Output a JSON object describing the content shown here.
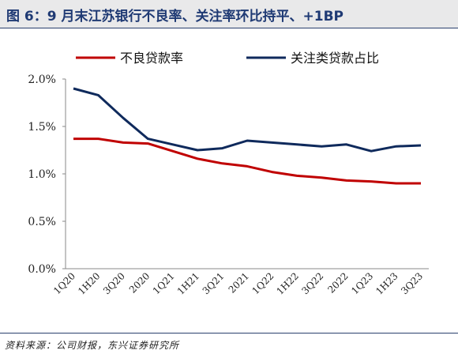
{
  "figure_title": "图 6：9 月末江苏银行不良率、关注率环比持平、+1BP",
  "source": "资料来源：公司财报，东兴证券研究所",
  "chart_data": {
    "type": "line",
    "categories": [
      "1Q20",
      "1H20",
      "3Q20",
      "2020",
      "1Q21",
      "1H21",
      "3Q21",
      "2021",
      "1Q22",
      "1H22",
      "3Q22",
      "2022",
      "1Q23",
      "1H23",
      "3Q23"
    ],
    "series": [
      {
        "name": "不良贷款率",
        "color": "#c00000",
        "values": [
          1.37,
          1.37,
          1.33,
          1.32,
          1.24,
          1.16,
          1.11,
          1.08,
          1.02,
          0.98,
          0.96,
          0.93,
          0.92,
          0.9,
          0.9
        ]
      },
      {
        "name": "关注类贷款占比",
        "color": "#0f2a5c",
        "values": [
          1.9,
          1.83,
          1.59,
          1.37,
          1.31,
          1.25,
          1.27,
          1.35,
          1.33,
          1.31,
          1.29,
          1.31,
          1.24,
          1.29,
          1.3
        ]
      }
    ],
    "y_ticks": [
      "2.0%",
      "1.5%",
      "1.0%",
      "0.5%",
      "0.0%"
    ],
    "ylim": [
      0,
      2.0
    ],
    "grid": false,
    "legend_position": "top"
  }
}
